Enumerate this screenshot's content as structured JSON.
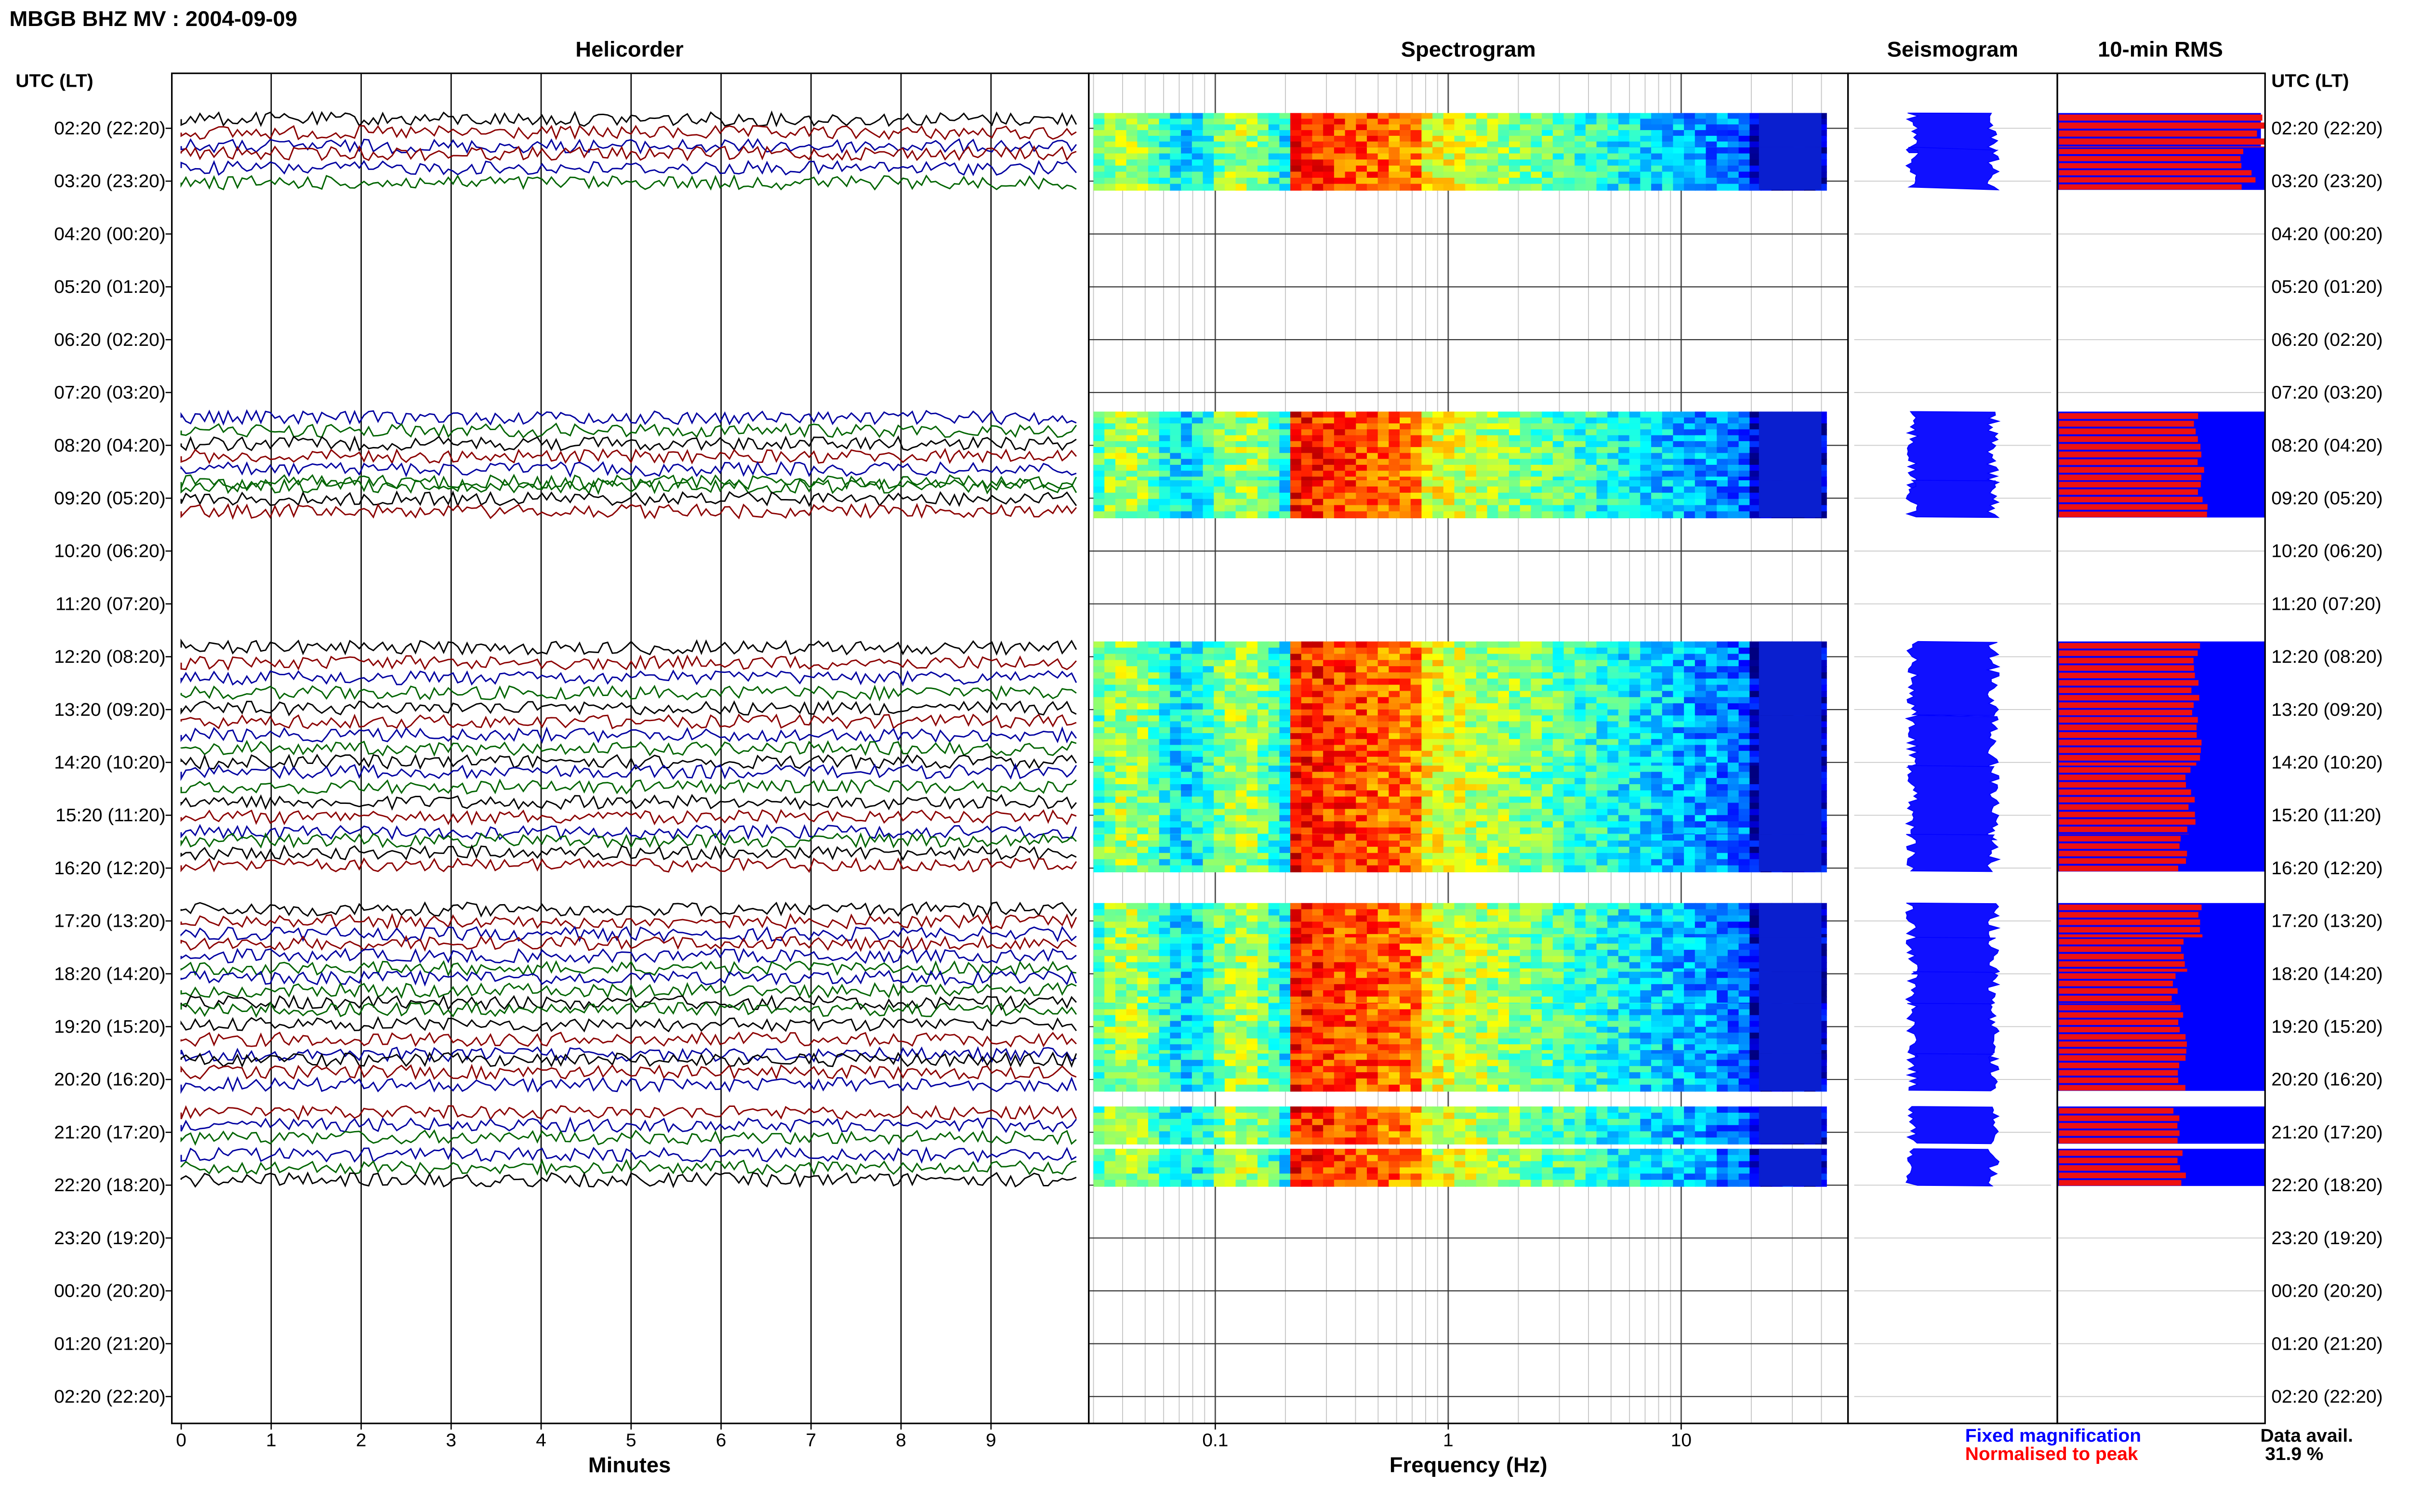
{
  "header": {
    "title": "MBGB BHZ MV : 2004-09-09"
  },
  "panels": {
    "helicorder": "Helicorder",
    "spectrogram": "Spectrogram",
    "seismogram": "Seismogram",
    "rms": "10-min RMS"
  },
  "time_header_left": "UTC (LT)",
  "time_header_right": "UTC (LT)",
  "time_labels": [
    "02:20 (22:20)",
    "03:20 (23:20)",
    "04:20 (00:20)",
    "05:20 (01:20)",
    "06:20 (02:20)",
    "07:20 (03:20)",
    "08:20 (04:20)",
    "09:20 (05:20)",
    "10:20 (06:20)",
    "11:20 (07:20)",
    "12:20 (08:20)",
    "13:20 (09:20)",
    "14:20 (10:20)",
    "15:20 (11:20)",
    "16:20 (12:20)",
    "17:20 (13:20)",
    "18:20 (14:20)",
    "19:20 (15:20)",
    "20:20 (16:20)",
    "21:20 (17:20)",
    "22:20 (18:20)",
    "23:20 (19:20)",
    "00:20 (20:20)",
    "01:20 (21:20)",
    "02:20 (22:20)"
  ],
  "axes": {
    "minutes_ticks": [
      "0",
      "1",
      "2",
      "3",
      "4",
      "5",
      "6",
      "7",
      "8",
      "9"
    ],
    "minutes_label": "Minutes",
    "freq_ticks": [
      "0.1",
      "1",
      "10"
    ],
    "freq_label": "Frequency (Hz)"
  },
  "legend": {
    "fixed": "Fixed magnification",
    "normalised": "Normalised to peak",
    "fixed_color": "#0000ff",
    "normalised_color": "#ff0000"
  },
  "data_availability": {
    "label": "Data avail.",
    "value": "31.9 %"
  },
  "chart_data": {
    "type": "heatmap",
    "title": "MBGB BHZ MV : 2004-09-09",
    "hours_with_data": [
      "02:20",
      "03:20",
      "08:20",
      "09:20",
      "12:20",
      "13:20",
      "14:20",
      "15:20",
      "16:20",
      "17:20",
      "18:20",
      "19:20",
      "20:20",
      "21:20",
      "22:20"
    ],
    "active_bands": [
      {
        "from_hour": 0.0,
        "to_hour": 0.35,
        "rms_fixed": 0.98,
        "rms_norm": 0.98
      },
      {
        "from_hour": 0.65,
        "to_hour": 1.05,
        "rms_fixed": 1.0,
        "rms_norm": 0.92
      },
      {
        "from_hour": 5.65,
        "to_hour": 6.7,
        "rms_fixed": 1.0,
        "rms_norm": 0.68
      },
      {
        "from_hour": 6.95,
        "to_hour": 7.25,
        "rms_fixed": 1.0,
        "rms_norm": 0.7
      },
      {
        "from_hour": 10.0,
        "to_hour": 11.0,
        "rms_fixed": 1.0,
        "rms_norm": 0.66
      },
      {
        "from_hour": 11.4,
        "to_hour": 12.0,
        "rms_fixed": 1.0,
        "rms_norm": 0.68
      },
      {
        "from_hour": 12.35,
        "to_hour": 13.35,
        "rms_fixed": 1.0,
        "rms_norm": 0.64
      },
      {
        "from_hour": 13.65,
        "to_hour": 13.95,
        "rms_fixed": 1.0,
        "rms_norm": 0.6
      },
      {
        "from_hour": 14.95,
        "to_hour": 15.25,
        "rms_fixed": 1.0,
        "rms_norm": 0.68
      },
      {
        "from_hour": 15.6,
        "to_hour": 15.9,
        "rms_fixed": 1.0,
        "rms_norm": 0.6
      },
      {
        "from_hour": 16.25,
        "to_hour": 16.55,
        "rms_fixed": 1.0,
        "rms_norm": 0.57
      },
      {
        "from_hour": 16.85,
        "to_hour": 17.55,
        "rms_fixed": 1.0,
        "rms_norm": 0.6
      },
      {
        "from_hour": 17.8,
        "to_hour": 18.1,
        "rms_fixed": 1.0,
        "rms_norm": 0.6
      },
      {
        "from_hour": 18.8,
        "to_hour": 19.1,
        "rms_fixed": 1.0,
        "rms_norm": 0.58
      },
      {
        "from_hour": 19.6,
        "to_hour": 19.9,
        "rms_fixed": 1.0,
        "rms_norm": 0.6
      }
    ],
    "helicorder_colors": [
      "#000000",
      "#8b0000",
      "#0000a0",
      "#006400"
    ],
    "minutes_range": [
      0,
      10
    ],
    "freq_range_hz": [
      0.03,
      40
    ],
    "xscale_spectrogram": "log"
  }
}
